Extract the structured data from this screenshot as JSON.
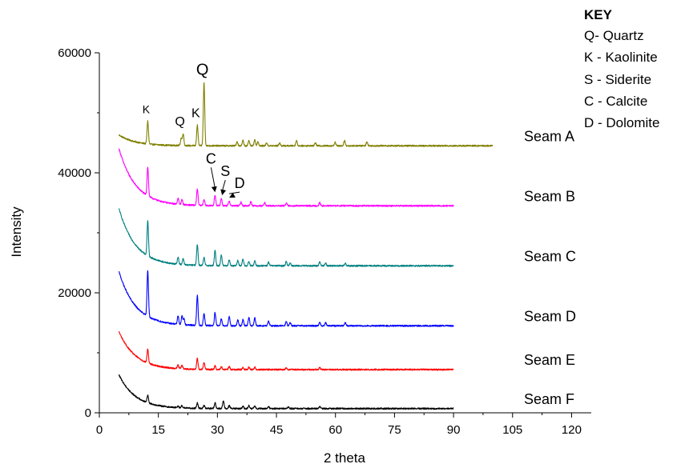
{
  "chart_data": {
    "type": "line",
    "xlabel": "2 theta",
    "ylabel": "Intensity",
    "xlim": [
      0,
      125
    ],
    "ylim": [
      0,
      60000
    ],
    "x_ticks": [
      0,
      15,
      30,
      45,
      60,
      75,
      90,
      105,
      120
    ],
    "y_ticks": [
      0,
      20000,
      40000,
      60000
    ],
    "key": {
      "title": "KEY",
      "entries": [
        "Q- Quartz",
        "K - Kaolinite",
        "S - Siderite",
        "C - Calcite",
        "D - Dolomite"
      ]
    },
    "series": [
      {
        "name": "Seam A",
        "color": "#808000",
        "x_range": [
          5,
          100
        ],
        "baseline": 44500,
        "decay_amp": 1800,
        "peaks": [
          [
            12.3,
            3800
          ],
          [
            20.8,
            1200
          ],
          [
            21.3,
            2000
          ],
          [
            24.9,
            3400
          ],
          [
            26.6,
            10500
          ],
          [
            35,
            700
          ],
          [
            36.5,
            900
          ],
          [
            38,
            800
          ],
          [
            39.5,
            1000
          ],
          [
            40.3,
            700
          ],
          [
            42.5,
            500
          ],
          [
            45.8,
            500
          ],
          [
            50.1,
            900
          ],
          [
            54.9,
            500
          ],
          [
            59.9,
            600
          ],
          [
            62.3,
            900
          ],
          [
            68,
            700
          ]
        ]
      },
      {
        "name": "Seam B",
        "color": "#ff00ff",
        "x_range": [
          5,
          90
        ],
        "baseline": 34500,
        "decay_amp": 9500,
        "peaks": [
          [
            12.3,
            4800
          ],
          [
            20,
            1000
          ],
          [
            21,
            800
          ],
          [
            24.9,
            2700
          ],
          [
            26.6,
            1000
          ],
          [
            29.4,
            1700
          ],
          [
            31,
            1200
          ],
          [
            33,
            800
          ],
          [
            36,
            600
          ],
          [
            38.5,
            700
          ],
          [
            42,
            500
          ],
          [
            47.5,
            500
          ],
          [
            56,
            500
          ]
        ]
      },
      {
        "name": "Seam C",
        "color": "#008080",
        "x_range": [
          5,
          90
        ],
        "baseline": 24500,
        "decay_amp": 9500,
        "peaks": [
          [
            12.3,
            5800
          ],
          [
            20,
            1200
          ],
          [
            21.3,
            1000
          ],
          [
            24.9,
            3500
          ],
          [
            26.6,
            1300
          ],
          [
            29.4,
            2500
          ],
          [
            31,
            1800
          ],
          [
            33,
            1000
          ],
          [
            35.2,
            900
          ],
          [
            36.5,
            1100
          ],
          [
            38,
            700
          ],
          [
            39.5,
            800
          ],
          [
            43,
            600
          ],
          [
            47.5,
            700
          ],
          [
            48.5,
            500
          ],
          [
            56,
            700
          ],
          [
            57.5,
            500
          ],
          [
            62.5,
            400
          ]
        ]
      },
      {
        "name": "Seam D",
        "color": "#0000ff",
        "x_range": [
          5,
          90
        ],
        "baseline": 14500,
        "decay_amp": 9000,
        "peaks": [
          [
            12.3,
            7700
          ],
          [
            20,
            1400
          ],
          [
            21,
            1400
          ],
          [
            21.5,
            1000
          ],
          [
            24.9,
            5000
          ],
          [
            26.6,
            2000
          ],
          [
            29.4,
            2200
          ],
          [
            31,
            1200
          ],
          [
            33,
            1500
          ],
          [
            35.2,
            1000
          ],
          [
            36.5,
            1000
          ],
          [
            38,
            1400
          ],
          [
            39.5,
            1300
          ],
          [
            43,
            800
          ],
          [
            47.5,
            700
          ],
          [
            48.5,
            500
          ],
          [
            56,
            600
          ],
          [
            57.5,
            500
          ],
          [
            62.5,
            500
          ]
        ]
      },
      {
        "name": "Seam E",
        "color": "#ff0000",
        "x_range": [
          5,
          90
        ],
        "baseline": 7200,
        "decay_amp": 6300,
        "peaks": [
          [
            12.3,
            2300
          ],
          [
            20,
            600
          ],
          [
            21,
            600
          ],
          [
            24.9,
            1800
          ],
          [
            26.6,
            1200
          ],
          [
            29.4,
            600
          ],
          [
            31,
            500
          ],
          [
            33,
            500
          ],
          [
            36.5,
            400
          ],
          [
            38,
            400
          ],
          [
            39.5,
            400
          ],
          [
            47.5,
            300
          ],
          [
            56,
            300
          ]
        ]
      },
      {
        "name": "Seam F",
        "color": "#000000",
        "x_range": [
          5,
          90
        ],
        "baseline": 700,
        "decay_amp": 5600,
        "peaks": [
          [
            12.3,
            1300
          ],
          [
            20,
            300
          ],
          [
            21,
            400
          ],
          [
            24.9,
            900
          ],
          [
            26.6,
            500
          ],
          [
            29.4,
            1000
          ],
          [
            31.5,
            1300
          ],
          [
            33,
            500
          ],
          [
            36.5,
            400
          ],
          [
            38,
            500
          ],
          [
            39.5,
            400
          ],
          [
            43,
            300
          ],
          [
            48,
            300
          ],
          [
            56,
            300
          ]
        ]
      }
    ],
    "annotations": [
      {
        "text": "K",
        "series": "Seam A",
        "x": 12.3,
        "size": "small"
      },
      {
        "text": "Q",
        "series": "Seam A",
        "x": 20.9,
        "size": "medium"
      },
      {
        "text": "K",
        "series": "Seam A",
        "x": 24.9,
        "size": "medium"
      },
      {
        "text": "Q",
        "series": "Seam A",
        "x": 26.6,
        "size": "large"
      },
      {
        "text": "C",
        "series": "Seam B",
        "x": 29.4,
        "arrow": true
      },
      {
        "text": "S",
        "series": "Seam B",
        "x": 31.2,
        "arrow": true
      },
      {
        "text": "D",
        "series": "Seam B",
        "x": 33.0,
        "arrow": true
      }
    ]
  }
}
